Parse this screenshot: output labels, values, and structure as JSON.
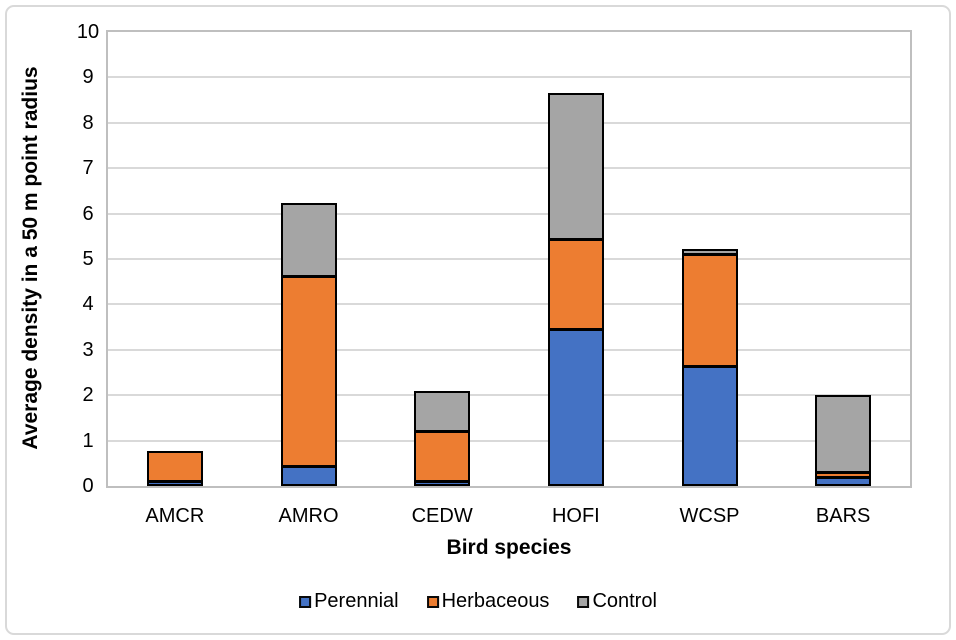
{
  "chart_data": {
    "type": "bar",
    "stacked": true,
    "title": "",
    "categories": [
      "AMCR",
      "AMRO",
      "CEDW",
      "HOFI",
      "WCSP",
      "BARS"
    ],
    "series": [
      {
        "name": "Perennial",
        "color": "#4472C4",
        "values": [
          0.1,
          0.43,
          0.12,
          3.45,
          2.65,
          0.2
        ]
      },
      {
        "name": "Herbaceous",
        "color": "#ED7D31",
        "values": [
          0.68,
          4.2,
          1.1,
          2.0,
          2.45,
          0.1
        ]
      },
      {
        "name": "Control",
        "color": "#A5A5A5",
        "values": [
          0,
          1.6,
          0.88,
          3.2,
          0.12,
          1.7
        ]
      }
    ],
    "totals": [
      0.78,
      6.23,
      2.1,
      8.65,
      5.22,
      2.0
    ],
    "xlabel": "Bird species",
    "ylabel": "Average density in a 50 m point radius",
    "ylim": [
      0,
      10
    ],
    "y_ticks": [
      0,
      1,
      2,
      3,
      4,
      5,
      6,
      7,
      8,
      9,
      10
    ],
    "grid": "horizontal",
    "legend_position": "bottom",
    "bar_border_color": "#000000",
    "gridline_color": "#D9D9D9",
    "axis_frame_color": "#BFBFBF"
  }
}
